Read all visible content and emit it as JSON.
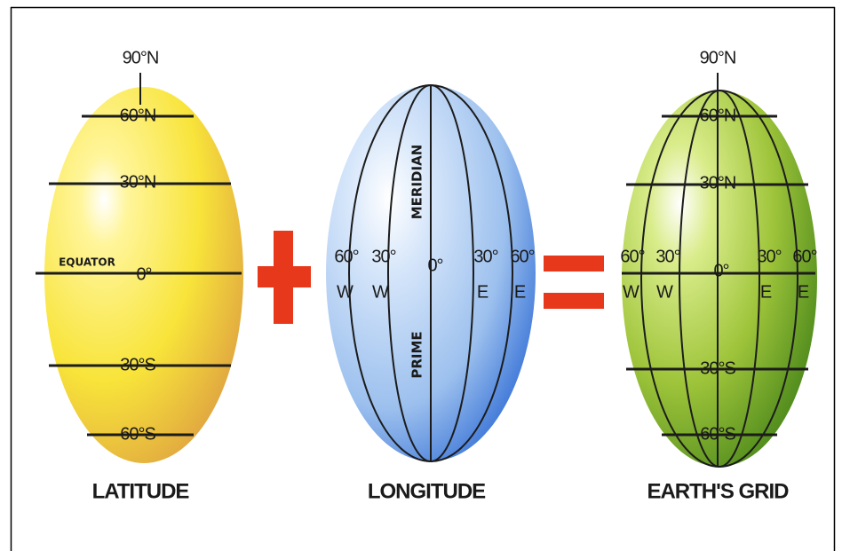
{
  "latitude": {
    "caption": "LATITUDE",
    "north_pole": "90°N",
    "equator_name": "EQUATOR",
    "parallels": [
      "60°N",
      "30°N",
      "0°",
      "30°S",
      "60°S"
    ]
  },
  "longitude": {
    "caption": "LONGITUDE",
    "meridian_name_upper": "MERIDIAN",
    "meridian_name_lower": "PRIME",
    "meridians": [
      {
        "degree": "60°",
        "hemisphere": "W"
      },
      {
        "degree": "30°",
        "hemisphere": "W"
      },
      {
        "degree": "0°"
      },
      {
        "degree": "30°",
        "hemisphere": "E"
      },
      {
        "degree": "60°",
        "hemisphere": "E"
      }
    ]
  },
  "grid": {
    "caption": "EARTH'S GRID",
    "north_pole": "90°N",
    "parallels": [
      "60°N",
      "30°N",
      "30°S",
      "60°S"
    ],
    "meridians": [
      {
        "degree": "60°",
        "hemisphere": "W"
      },
      {
        "degree": "30°",
        "hemisphere": "W"
      },
      {
        "degree": "0°"
      },
      {
        "degree": "30°",
        "hemisphere": "E"
      },
      {
        "degree": "60°",
        "hemisphere": "E"
      }
    ]
  }
}
